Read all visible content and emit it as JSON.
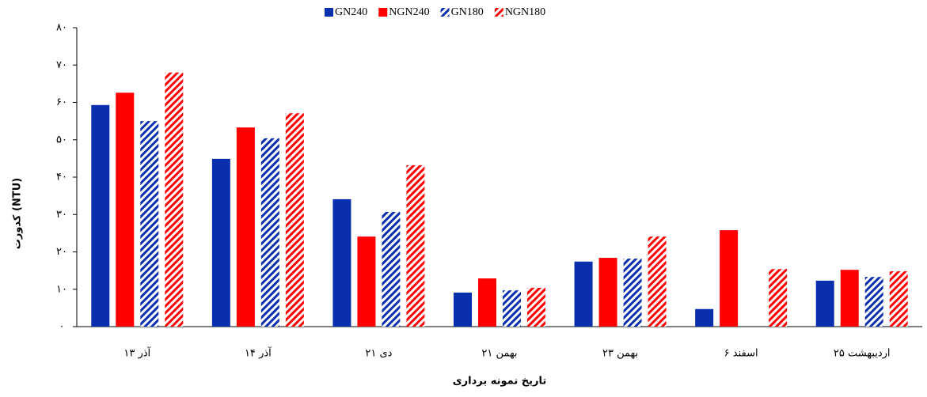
{
  "chart_data": {
    "type": "bar",
    "y_label": "کدورت (NTU)",
    "x_label": "تاریخ نمونه برداری",
    "categories": [
      "۱۳ آذر",
      "۱۴ آذر",
      "۲۱ دی",
      "۲۱ بهمن",
      "۲۳ بهمن",
      "۶ اسفند",
      "۲۵ اردیبهشت"
    ],
    "series": [
      {
        "name": "GN240",
        "color": "#0a2fae",
        "hatch": false,
        "values": [
          59.3,
          44.9,
          34.1,
          9.1,
          17.4,
          4.7,
          12.3
        ]
      },
      {
        "name": "NGN240",
        "color": "#ff0000",
        "hatch": false,
        "values": [
          62.6,
          53.3,
          24.1,
          12.9,
          18.4,
          25.8,
          15.2
        ]
      },
      {
        "name": "GN180",
        "color": "#0a2fae",
        "hatch": true,
        "values": [
          55.0,
          50.4,
          30.7,
          9.7,
          18.2,
          null,
          13.3
        ]
      },
      {
        "name": "NGN180",
        "color": "#ff0000",
        "hatch": true,
        "values": [
          68.0,
          57.1,
          43.2,
          10.4,
          24.1,
          15.4,
          14.8
        ]
      }
    ],
    "ylim": [
      0,
      80
    ],
    "yticks": [
      {
        "value": 0,
        "label": "۰"
      },
      {
        "value": 10,
        "label": "۱۰"
      },
      {
        "value": 20,
        "label": "۲۰"
      },
      {
        "value": 30,
        "label": "۳۰"
      },
      {
        "value": 40,
        "label": "۴۰"
      },
      {
        "value": 50,
        "label": "۵۰"
      },
      {
        "value": 60,
        "label": "۶۰"
      },
      {
        "value": 70,
        "label": "۷۰"
      },
      {
        "value": 80,
        "label": "۸۰"
      }
    ],
    "legend": "top",
    "grid": false
  }
}
